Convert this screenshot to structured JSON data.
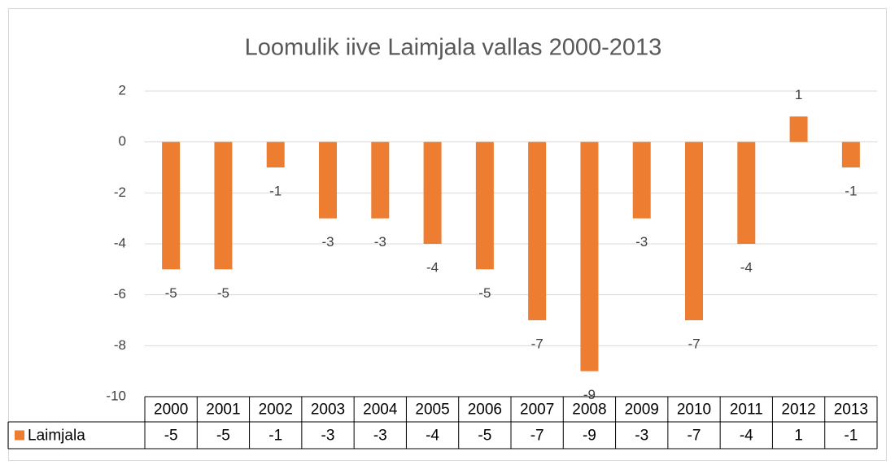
{
  "chart_data": {
    "type": "bar",
    "title": "Loomulik iive Laimjala vallas 2000-2013",
    "categories": [
      "2000",
      "2001",
      "2002",
      "2003",
      "2004",
      "2005",
      "2006",
      "2007",
      "2008",
      "2009",
      "2010",
      "2011",
      "2012",
      "2013"
    ],
    "series": [
      {
        "name": "Laimjala",
        "color": "#ed7d31",
        "values": [
          -5,
          -5,
          -1,
          -3,
          -3,
          -4,
          -5,
          -7,
          -9,
          -3,
          -7,
          -4,
          1,
          -1
        ]
      }
    ],
    "ylim": [
      -10,
      2
    ],
    "yticks": [
      -10,
      -8,
      -6,
      -4,
      -2,
      0,
      2
    ],
    "grid": true,
    "data_table": true
  }
}
